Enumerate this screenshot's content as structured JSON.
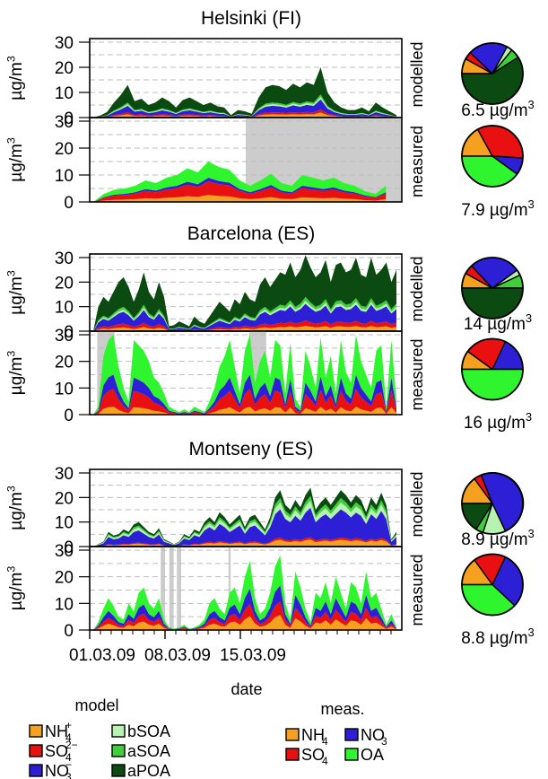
{
  "colors": {
    "NH4": "#f5a01f",
    "SO4": "#e81010",
    "NO3": "#2c1fd6",
    "bSOA": "#b6f2b0",
    "aSOA": "#3fcf3a",
    "aPOA": "#0b4a10",
    "OA_meas": "#2ff52f",
    "gap": "#cccccc",
    "grid": "#bdbdbd"
  },
  "common": {
    "x_tick_labels": [
      "01.03.09",
      "08.03.09",
      "15.03.09"
    ],
    "x_ticks_days": [
      0,
      7,
      14
    ],
    "xlim_days": [
      0,
      29
    ],
    "xlabel": "date",
    "ylabel": "µg/m³",
    "panel_modelled": "modelled",
    "panel_measured": "measured",
    "y_ticks": [
      0,
      10,
      20,
      30
    ]
  },
  "chart_data": [
    {
      "type": "area",
      "title": "Helsinki (FI)",
      "ylim": [
        0,
        30
      ],
      "grid": true,
      "modelled": {
        "total": [
          0,
          0.8,
          2.2,
          6,
          9,
          13,
          6.5,
          7.5,
          5,
          6,
          8,
          6.5,
          4,
          7,
          8,
          6.5,
          5,
          6,
          4.5,
          4,
          1,
          3,
          2.5,
          1.5,
          8,
          12,
          13,
          12.5,
          11,
          13.5,
          12,
          14,
          13,
          20,
          10,
          6,
          4,
          3,
          3,
          4,
          2.5,
          6,
          4,
          2.5,
          1
        ],
        "bottom_frac": {
          "NH4": 0.1,
          "SO4": 0.06,
          "NO3": 0.2,
          "bSOA": 0.05,
          "aSOA": 0.05,
          "aPOA": 0.54
        }
      },
      "measured": {
        "total": [
          0,
          3,
          4.5,
          5,
          6,
          8,
          7,
          9,
          10,
          12.5,
          11,
          15,
          13,
          12,
          8,
          6,
          8,
          10.5,
          7,
          6,
          10,
          9,
          8,
          9,
          7,
          6,
          4,
          3,
          6,
          null
        ],
        "bottom_frac": {
          "NH4": 0.17,
          "SO4": 0.34,
          "NO3": 0.09,
          "OA": 0.4
        },
        "gaps_days": [
          [
            14.5,
            29
          ]
        ]
      },
      "pie_modelled": {
        "label": "6.5 µg/m³",
        "fractions": {
          "NH4": 0.08,
          "SO4": 0.04,
          "NO3": 0.21,
          "bSOA": 0.03,
          "aSOA": 0.05,
          "aPOA": 0.59
        }
      },
      "pie_measured": {
        "label": "7.9 µg/m³",
        "fractions": {
          "NH4": 0.17,
          "SO4": 0.34,
          "NO3": 0.09,
          "OA": 0.4
        }
      }
    },
    {
      "type": "area",
      "title": "Barcelona (ES)",
      "ylim": [
        0,
        30
      ],
      "grid": true,
      "modelled": {
        "total": [
          0,
          10,
          14,
          12,
          16,
          20,
          22,
          18,
          12,
          17,
          24,
          16,
          13,
          20,
          14,
          2,
          2.5,
          4,
          3,
          2,
          6,
          4,
          3,
          6,
          9,
          12,
          10,
          8,
          13,
          11,
          16,
          13,
          12,
          19,
          22,
          18,
          21,
          24,
          23,
          28,
          22,
          25,
          31,
          26,
          22,
          24,
          29,
          20,
          27,
          28,
          24,
          25,
          30,
          23,
          22,
          30,
          23,
          25,
          28,
          20,
          25
        ],
        "bottom_frac": {
          "NH4": 0.07,
          "SO4": 0.07,
          "NO3": 0.22,
          "bSOA": 0.04,
          "aSOA": 0.05,
          "aPOA": 0.55
        }
      },
      "measured": {
        "total": [
          0,
          3,
          22,
          28,
          30,
          18,
          10,
          5,
          28,
          26,
          24,
          20,
          14,
          12,
          8,
          3,
          2,
          1,
          2,
          1,
          3,
          2,
          1,
          5,
          10,
          18,
          22,
          28,
          18,
          8,
          24,
          30,
          12,
          20,
          24,
          14,
          28,
          26,
          8,
          27,
          6,
          3,
          24,
          18,
          10,
          29,
          14,
          22,
          8,
          28,
          16,
          12,
          30,
          20,
          15,
          10,
          24,
          26,
          3,
          28,
          5
        ],
        "bottom_frac": {
          "NH4": 0.1,
          "SO4": 0.22,
          "NO3": 0.18,
          "OA": 0.5
        },
        "gaps_days": [
          [
            0.7,
            2.3
          ],
          [
            14.8,
            16.4
          ]
        ]
      },
      "pie_modelled": {
        "label": "14 µg/m³",
        "fractions": {
          "NH4": 0.08,
          "SO4": 0.05,
          "NO3": 0.27,
          "bSOA": 0.03,
          "aSOA": 0.07,
          "aPOA": 0.5
        }
      },
      "pie_measured": {
        "label": "16 µg/m³",
        "fractions": {
          "NH4": 0.1,
          "SO4": 0.22,
          "NO3": 0.18,
          "OA": 0.5
        }
      }
    },
    {
      "type": "area",
      "title": "Montseny (ES)",
      "ylim": [
        0,
        30
      ],
      "grid": true,
      "modelled": {
        "total": [
          0,
          1,
          2,
          6,
          4.5,
          5,
          7,
          6,
          9,
          10,
          8,
          6,
          5,
          7.5,
          3,
          2,
          1,
          2,
          5,
          4,
          7,
          6,
          10,
          12,
          10,
          14,
          12,
          9,
          11,
          13,
          8,
          12,
          13,
          10,
          7,
          12,
          20,
          23,
          17,
          15,
          19,
          16,
          21,
          24,
          15,
          18,
          20,
          17,
          20,
          23,
          21,
          18,
          21,
          19,
          14,
          20,
          17,
          22,
          17,
          3,
          6
        ],
        "bottom_frac": {
          "NH4": 0.12,
          "SO4": 0.04,
          "NO3": 0.5,
          "bSOA": 0.12,
          "aSOA": 0.08,
          "aPOA": 0.14
        }
      },
      "measured": {
        "total": [
          0,
          3,
          8,
          12,
          9,
          5,
          4,
          10,
          7,
          14,
          16,
          10,
          8,
          12,
          4,
          1,
          0.5,
          1,
          2,
          0.5,
          1,
          2,
          4,
          10,
          12,
          8,
          6,
          14,
          16,
          10,
          20,
          26,
          12,
          6,
          8,
          14,
          24,
          28,
          10,
          4,
          22,
          16,
          8,
          3,
          14,
          12,
          18,
          10,
          20,
          14,
          8,
          18,
          16,
          10,
          22,
          12,
          14,
          8,
          2,
          6,
          1
        ],
        "bottom_frac": {
          "NH4": 0.2,
          "SO4": 0.18,
          "NO3": 0.22,
          "OA": 0.4
        },
        "gaps_days": [
          [
            6.6,
            7.0
          ],
          [
            7.4,
            7.8
          ],
          [
            8.1,
            8.5
          ],
          [
            12.9,
            13.1
          ]
        ]
      },
      "pie_modelled": {
        "label": "8.9 µg/m³",
        "fractions": {
          "NH4": 0.15,
          "SO4": 0.04,
          "NO3": 0.49,
          "bSOA": 0.12,
          "aSOA": 0.04,
          "aPOA": 0.16
        }
      },
      "pie_measured": {
        "label": "8.8 µg/m³",
        "fractions": {
          "NH4": 0.15,
          "SO4": 0.17,
          "NO3": 0.3,
          "OA": 0.38
        }
      }
    }
  ],
  "legend": {
    "model_title": "model",
    "meas_title": "meas.",
    "model_items": [
      {
        "key": "NH4",
        "label": "NH",
        "sub": "4",
        "sup": "+"
      },
      {
        "key": "bSOA",
        "label": "bSOA",
        "sub": "",
        "sup": ""
      },
      {
        "key": "SO4",
        "label": "SO",
        "sub": "4",
        "sup": "2−"
      },
      {
        "key": "aSOA",
        "label": "aSOA",
        "sub": "",
        "sup": ""
      },
      {
        "key": "NO3",
        "label": "NO",
        "sub": "3",
        "sup": "−"
      },
      {
        "key": "aPOA",
        "label": "aPOA",
        "sub": "",
        "sup": ""
      }
    ],
    "meas_items": [
      {
        "key": "NH4",
        "label": "NH",
        "sub": "4",
        "sup": ""
      },
      {
        "key": "NO3",
        "label": "NO",
        "sub": "3",
        "sup": ""
      },
      {
        "key": "SO4",
        "label": "SO",
        "sub": "4",
        "sup": ""
      },
      {
        "key": "OA_meas",
        "label": "OA",
        "sub": "",
        "sup": ""
      }
    ]
  }
}
